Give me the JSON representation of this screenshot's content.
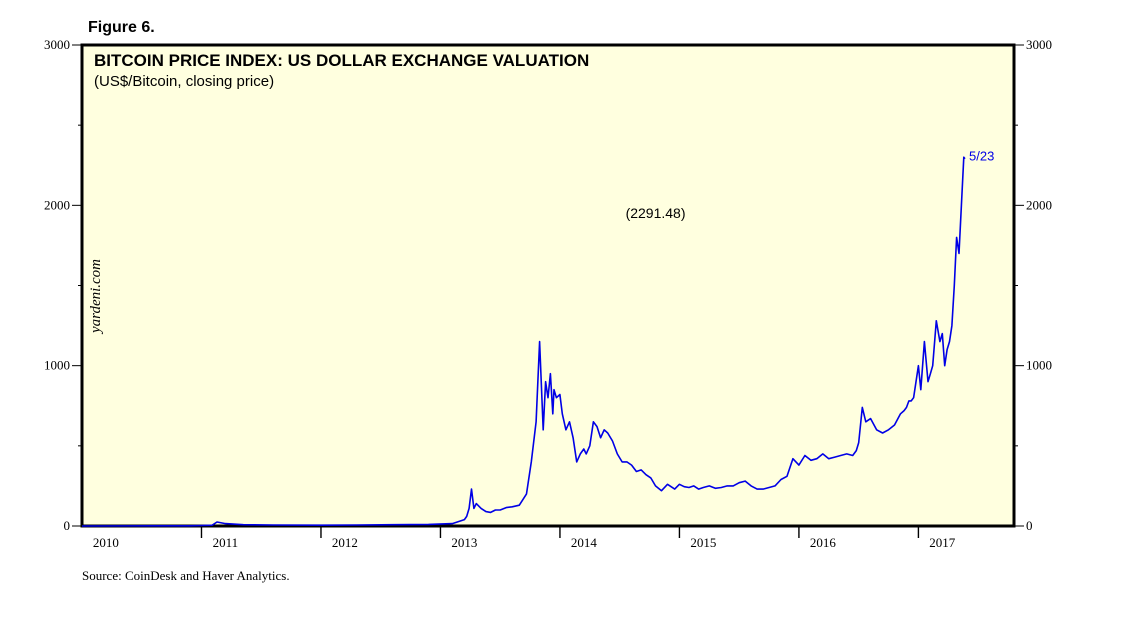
{
  "figure_label": "Figure 6.",
  "source_note": "Source: CoinDesk and Haver Analytics.",
  "watermark": "yardeni.com",
  "colors": {
    "plot_bg": "#ffffdf",
    "series": "#0000e6",
    "frame": "#000000",
    "text": "#000000"
  },
  "chart_data": {
    "type": "line",
    "title": "BITCOIN PRICE INDEX: US DOLLAR EXCHANGE VALUATION",
    "subtitle": "(US$/Bitcoin, closing price)",
    "xlabel": "",
    "ylabel": "",
    "xlim": [
      2010.0,
      2017.8
    ],
    "ylim": [
      0,
      3000
    ],
    "y_ticks": [
      0,
      1000,
      2000,
      3000
    ],
    "y_tick_labels": [
      "0",
      "1000",
      "2000",
      "3000"
    ],
    "x_year_labels": [
      "2010",
      "2011",
      "2012",
      "2013",
      "2014",
      "2015",
      "2016",
      "2017"
    ],
    "x_year_positions": [
      2010.0,
      2011.0,
      2012.0,
      2013.0,
      2014.0,
      2015.0,
      2016.0,
      2017.0
    ],
    "annotations": [
      {
        "text": "(2291.48)",
        "x": 2014.8,
        "y": 1920
      },
      {
        "text": "5/23",
        "x": 2017.39,
        "y": 2280
      }
    ],
    "series": [
      {
        "name": "Bitcoin Price Index (US$/Bitcoin)",
        "x": [
          2010.0,
          2010.6,
          2010.9,
          2011.0,
          2011.09,
          2011.13,
          2011.2,
          2011.35,
          2011.6,
          2012.0,
          2012.3,
          2012.6,
          2012.9,
          2013.1,
          2013.2,
          2013.22,
          2013.24,
          2013.26,
          2013.28,
          2013.3,
          2013.34,
          2013.38,
          2013.42,
          2013.46,
          2013.5,
          2013.55,
          2013.6,
          2013.66,
          2013.72,
          2013.76,
          2013.8,
          2013.83,
          2013.86,
          2013.88,
          2013.9,
          2013.92,
          2013.94,
          2013.95,
          2013.97,
          2014.0,
          2014.02,
          2014.05,
          2014.08,
          2014.11,
          2014.14,
          2014.17,
          2014.2,
          2014.22,
          2014.25,
          2014.28,
          2014.31,
          2014.34,
          2014.37,
          2014.4,
          2014.44,
          2014.48,
          2014.52,
          2014.56,
          2014.6,
          2014.64,
          2014.68,
          2014.72,
          2014.76,
          2014.8,
          2014.85,
          2014.9,
          2014.96,
          2015.0,
          2015.04,
          2015.08,
          2015.12,
          2015.16,
          2015.2,
          2015.25,
          2015.3,
          2015.35,
          2015.4,
          2015.45,
          2015.5,
          2015.55,
          2015.6,
          2015.65,
          2015.7,
          2015.75,
          2015.8,
          2015.85,
          2015.9,
          2015.95,
          2016.0,
          2016.05,
          2016.1,
          2016.15,
          2016.2,
          2016.25,
          2016.3,
          2016.35,
          2016.4,
          2016.45,
          2016.48,
          2016.5,
          2016.53,
          2016.56,
          2016.6,
          2016.65,
          2016.7,
          2016.75,
          2016.8,
          2016.85,
          2016.88,
          2016.9,
          2016.92,
          2016.94,
          2016.96,
          2016.98,
          2017.0,
          2017.02,
          2017.05,
          2017.08,
          2017.1,
          2017.12,
          2017.15,
          2017.18,
          2017.2,
          2017.22,
          2017.24,
          2017.26,
          2017.28,
          2017.3,
          2017.32,
          2017.34,
          2017.36,
          2017.38,
          2017.39
        ],
        "values": [
          0,
          1,
          1,
          3,
          5,
          25,
          15,
          8,
          6,
          5,
          6,
          8,
          10,
          15,
          40,
          60,
          110,
          230,
          110,
          140,
          110,
          90,
          85,
          100,
          100,
          115,
          120,
          130,
          200,
          400,
          650,
          1150,
          600,
          900,
          800,
          950,
          700,
          850,
          800,
          820,
          700,
          600,
          650,
          550,
          400,
          450,
          480,
          450,
          500,
          650,
          620,
          550,
          600,
          580,
          530,
          450,
          400,
          400,
          380,
          340,
          350,
          320,
          300,
          250,
          220,
          260,
          230,
          260,
          245,
          240,
          250,
          230,
          240,
          250,
          235,
          240,
          250,
          250,
          270,
          280,
          250,
          230,
          230,
          240,
          250,
          290,
          310,
          420,
          380,
          440,
          410,
          420,
          450,
          420,
          430,
          440,
          450,
          440,
          470,
          520,
          740,
          650,
          670,
          600,
          580,
          600,
          630,
          700,
          720,
          740,
          780,
          780,
          800,
          900,
          1000,
          850,
          1150,
          900,
          950,
          1000,
          1280,
          1150,
          1200,
          1000,
          1100,
          1150,
          1250,
          1500,
          1800,
          1700,
          2000,
          2300,
          2291
        ]
      }
    ]
  }
}
